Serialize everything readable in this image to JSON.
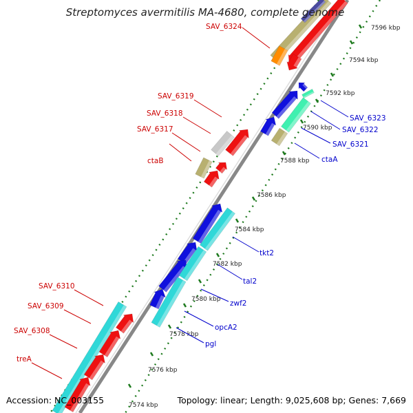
{
  "title": "Streptomyces avermitilis MA-4680, complete genome",
  "footer": {
    "accession": "Accession: NC_003155",
    "summary": "Topology: linear; Length: 9,025,608 bp; Genes: 7,669"
  },
  "colors": {
    "reverse_label": "#cc0000",
    "forward_label": "#0000cc",
    "backbone": "#888888",
    "tick": "#1e7a1e",
    "red_gene": "#ee1111",
    "blue_gene": "#1010dd",
    "cyan_gene": "#30d8d8",
    "olive_gene": "#b8b070",
    "grey_gene": "#c8c8c8",
    "orange_gene": "#ff8c00",
    "mint_gene": "#40f0b0"
  },
  "kbp_ticks": [
    {
      "label": "7596 kbp"
    },
    {
      "label": "7594 kbp"
    },
    {
      "label": "7592 kbp"
    },
    {
      "label": "7590 kbp"
    },
    {
      "label": "7588 kbp"
    },
    {
      "label": "7586 kbp"
    },
    {
      "label": "7584 kbp"
    },
    {
      "label": "7582 kbp"
    },
    {
      "label": "7580 kbp"
    },
    {
      "label": "7578 kbp"
    },
    {
      "label": "7576 kbp"
    },
    {
      "label": "7574 kbp"
    }
  ],
  "reverse_labels": [
    {
      "name": "SAV_6324"
    },
    {
      "name": "SAV_6319"
    },
    {
      "name": "SAV_6318"
    },
    {
      "name": "SAV_6317"
    },
    {
      "name": "ctaB"
    },
    {
      "name": "SAV_6310"
    },
    {
      "name": "SAV_6309"
    },
    {
      "name": "SAV_6308"
    },
    {
      "name": "treA"
    }
  ],
  "forward_labels": [
    {
      "name": "SAV_6323"
    },
    {
      "name": "SAV_6322"
    },
    {
      "name": "SAV_6321"
    },
    {
      "name": "ctaA"
    },
    {
      "name": "tkt2"
    },
    {
      "name": "tal2"
    },
    {
      "name": "zwf2"
    },
    {
      "name": "opcA2"
    },
    {
      "name": "pgl"
    }
  ]
}
